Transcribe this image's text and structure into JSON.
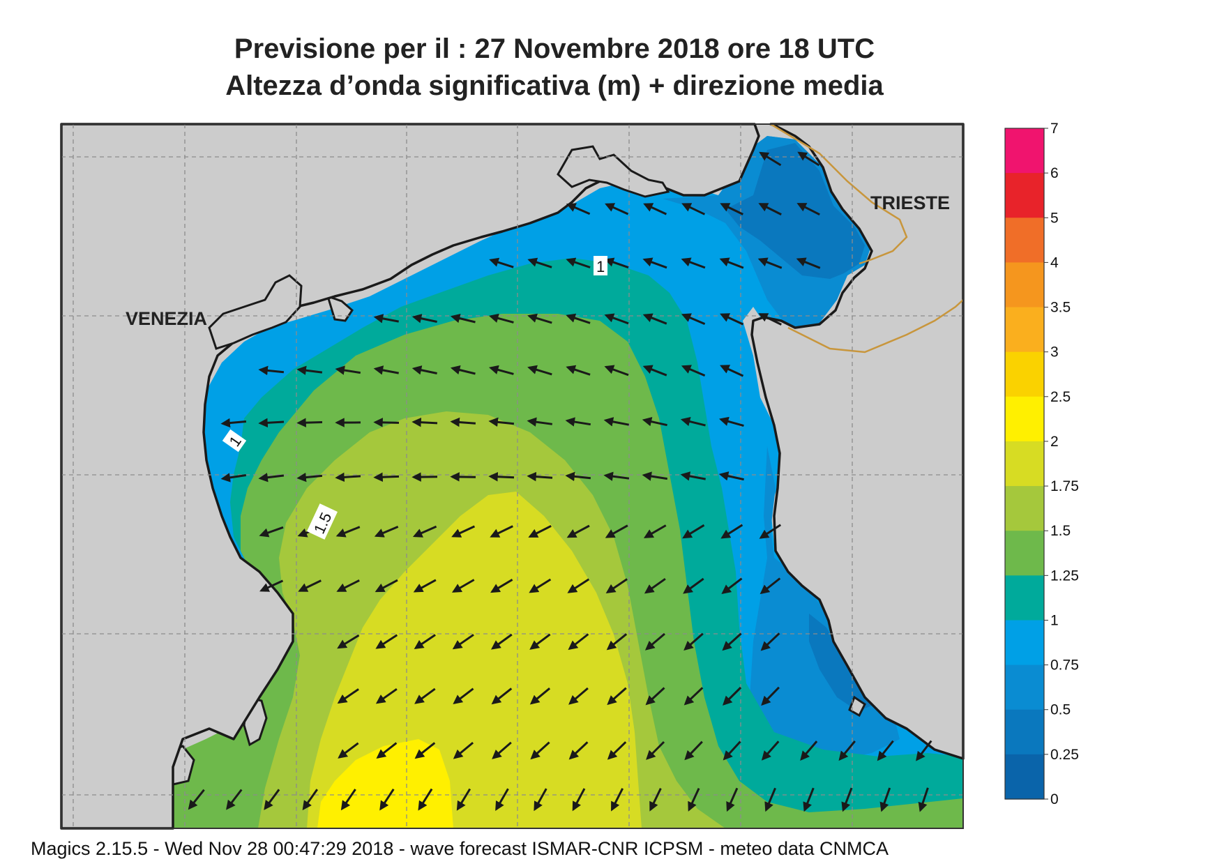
{
  "title_line1": "Previsione per il  :  27 Novembre  2018   ore 18 UTC",
  "title_line2": "Altezza d’onda significativa (m) + direzione media",
  "footer": "Magics 2.15.5 - Wed Nov 28 00:47:29 2018 - wave forecast  ISMAR-CNR  ICPSM - meteo data   CNMCA",
  "places": [
    {
      "name": "VENEZIA"
    },
    {
      "name": "TRIESTE"
    }
  ],
  "contour_labels": [
    "1",
    "1",
    "1.5"
  ],
  "colorbar": {
    "labels": [
      "7",
      "6",
      "5",
      "4",
      "3.5",
      "3",
      "2.5",
      "2",
      "1.75",
      "1.5",
      "1.25",
      "1",
      "0.75",
      "0.5",
      "0.25",
      "0"
    ],
    "colors": [
      "#f0146e",
      "#e8232a",
      "#f06e28",
      "#f5961e",
      "#faaf1e",
      "#fad200",
      "#fff000",
      "#d7dc23",
      "#a5c83c",
      "#6eb94b",
      "#00aa9b",
      "#00a0e6",
      "#0a8cd2",
      "#0a78be",
      "#0a64aa"
    ]
  },
  "colors": {
    "land": "#cccccc",
    "coast": "#1a1a1a",
    "border": "#c8963c",
    "grid": "#8c8c8c"
  },
  "legend_symbol": "wave-direction-arrow"
}
